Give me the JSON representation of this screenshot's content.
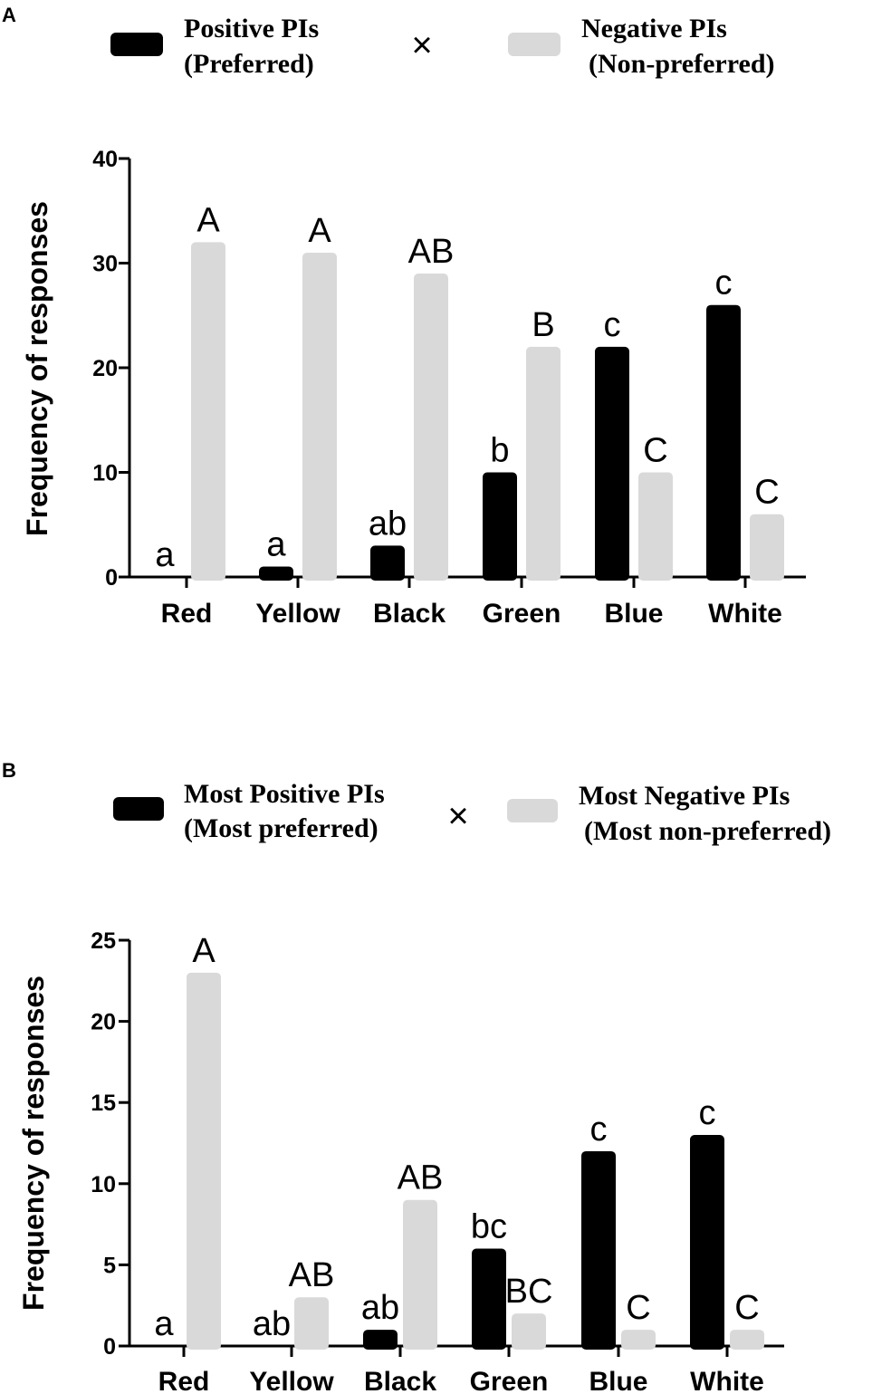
{
  "chart_data": [
    {
      "panel": "A",
      "type": "bar",
      "categories": [
        "Red",
        "Yellow",
        "Black",
        "Green",
        "Blue",
        "White"
      ],
      "series": [
        {
          "name": "Positive PIs (Preferred)",
          "color": "#000000",
          "values": [
            0,
            1,
            3,
            10,
            22,
            26
          ],
          "labels": [
            "a",
            "a",
            "ab",
            "b",
            "c",
            "c"
          ]
        },
        {
          "name": "Negative PIs (Non-preferred)",
          "color": "#d9d9d9",
          "values": [
            32,
            31,
            29,
            22,
            10,
            6
          ],
          "labels": [
            "A",
            "A",
            "AB",
            "B",
            "C",
            "C"
          ]
        }
      ],
      "legend": {
        "pos_line1": "Positive PIs",
        "pos_line2": "(Preferred)",
        "separator": "×",
        "neg_line1": "Negative PIs",
        "neg_line2": "(Non-preferred)"
      },
      "ylabel": "Frequency of  responses",
      "xlabel": "",
      "ylim": [
        0,
        40
      ],
      "yticks": [
        0,
        10,
        20,
        30,
        40
      ]
    },
    {
      "panel": "B",
      "type": "bar",
      "categories": [
        "Red",
        "Yellow",
        "Black",
        "Green",
        "Blue",
        "White"
      ],
      "series": [
        {
          "name": "Most Positive PIs (Most preferred)",
          "color": "#000000",
          "values": [
            0,
            0,
            1,
            6,
            12,
            13
          ],
          "labels": [
            "a",
            "ab",
            "ab",
            "bc",
            "c",
            "c"
          ]
        },
        {
          "name": "Most Negative PIs (Most non-preferred)",
          "color": "#d9d9d9",
          "values": [
            23,
            3,
            9,
            2,
            1,
            1
          ],
          "labels": [
            "A",
            "AB",
            "AB",
            "BC",
            "C",
            "C"
          ]
        }
      ],
      "legend": {
        "pos_line1": "Most Positive PIs",
        "pos_line2": "(Most preferred)",
        "separator": "×",
        "neg_line1": "Most Negative PIs",
        "neg_line2": "(Most non-preferred)"
      },
      "ylabel": "Frequency of responses",
      "xlabel": "",
      "ylim": [
        0,
        25
      ],
      "yticks": [
        0,
        5,
        10,
        15,
        20,
        25
      ]
    }
  ]
}
